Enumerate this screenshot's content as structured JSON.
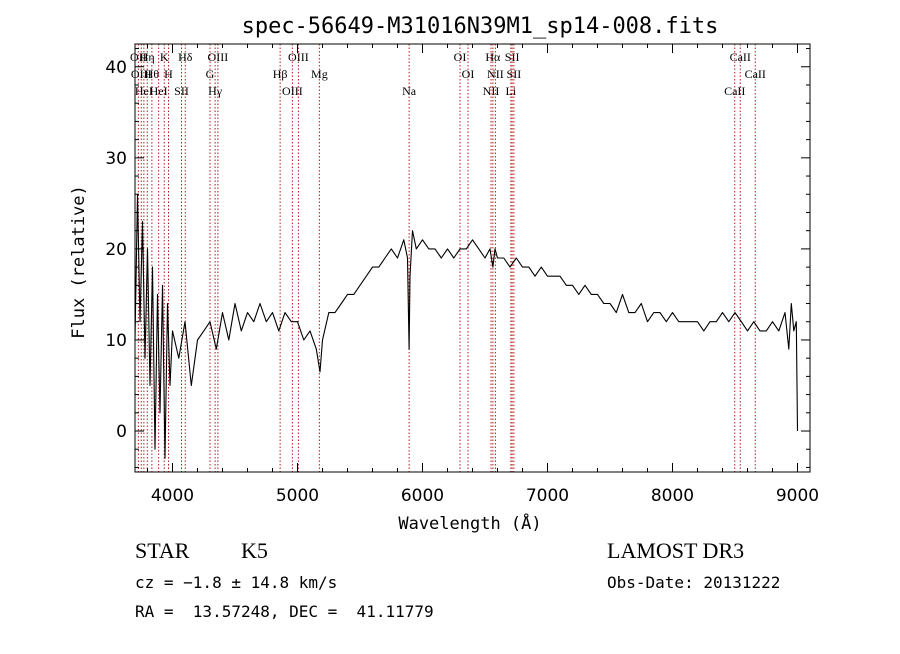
{
  "chart_data": {
    "type": "line",
    "title": "spec-56649-M31016N39M1_sp14-008.fits",
    "xlabel": "Wavelength (Å)",
    "ylabel": "Flux (relative)",
    "xlim": [
      3700,
      9100
    ],
    "ylim": [
      -4.5,
      42.5
    ],
    "x_ticks": [
      4000,
      5000,
      6000,
      7000,
      8000,
      9000
    ],
    "x_tick_labels": [
      "4000",
      "5000",
      "6000",
      "7000",
      "8000",
      "9000"
    ],
    "y_ticks": [
      0,
      10,
      20,
      30,
      40
    ],
    "y_tick_labels": [
      "0",
      "10",
      "20",
      "30",
      "40"
    ],
    "grid": false,
    "line_color": "#000000",
    "marker_line_color": "#b41e1e",
    "series": [
      {
        "x": [
          3700,
          3720,
          3740,
          3760,
          3780,
          3800,
          3820,
          3840,
          3860,
          3880,
          3900,
          3920,
          3940,
          3960,
          3980,
          4000,
          4050,
          4100,
          4150,
          4200,
          4250,
          4300,
          4350,
          4400,
          4450,
          4500,
          4550,
          4600,
          4650,
          4700,
          4750,
          4800,
          4850,
          4900,
          4950,
          5000,
          5050,
          5100,
          5150,
          5180,
          5200,
          5250,
          5300,
          5350,
          5400,
          5450,
          5500,
          5550,
          5600,
          5650,
          5700,
          5750,
          5800,
          5850,
          5880,
          5893,
          5900,
          5920,
          5950,
          6000,
          6050,
          6100,
          6150,
          6200,
          6250,
          6300,
          6350,
          6400,
          6450,
          6500,
          6540,
          6563,
          6580,
          6600,
          6650,
          6700,
          6750,
          6800,
          6850,
          6900,
          6950,
          7000,
          7050,
          7100,
          7150,
          7200,
          7250,
          7300,
          7350,
          7400,
          7450,
          7500,
          7550,
          7600,
          7650,
          7700,
          7750,
          7800,
          7850,
          7900,
          7950,
          8000,
          8050,
          8100,
          8150,
          8200,
          8250,
          8300,
          8350,
          8400,
          8450,
          8500,
          8550,
          8600,
          8650,
          8700,
          8750,
          8800,
          8850,
          8900,
          8930,
          8950,
          8970,
          8990,
          9000
        ],
        "y": [
          10,
          26,
          12,
          23,
          8,
          20,
          5,
          18,
          -2,
          15,
          2,
          16,
          -3,
          14,
          5,
          11,
          8,
          12,
          5,
          10,
          11,
          12,
          9,
          13,
          10,
          14,
          11,
          13,
          12,
          14,
          12,
          13,
          11,
          13,
          12,
          12,
          10,
          11,
          9,
          6.5,
          10,
          13,
          13,
          14,
          15,
          15,
          16,
          17,
          18,
          18,
          19,
          20,
          19,
          21,
          19,
          9,
          17,
          22,
          20,
          21,
          20,
          20,
          19,
          20,
          19,
          20,
          20,
          21,
          20,
          19,
          20,
          18,
          20,
          19,
          19,
          18,
          19,
          18,
          18,
          17,
          18,
          17,
          17,
          17,
          16,
          16,
          15,
          16,
          15,
          15,
          14,
          14,
          13,
          15,
          13,
          13,
          14,
          12,
          13,
          13,
          12,
          13,
          12,
          12,
          12,
          12,
          11,
          12,
          12,
          13,
          12,
          13,
          12,
          11,
          12,
          11,
          11,
          12,
          11,
          13,
          9,
          14,
          11,
          12,
          0
        ]
      }
    ],
    "line_markers": [
      {
        "x": 3727,
        "labels": [
          "OII"
        ]
      },
      {
        "x": 3750,
        "labels": [
          "OIII"
        ]
      },
      {
        "x": 3771,
        "labels": [
          "HeI"
        ]
      },
      {
        "x": 3798,
        "labels": [
          "Hη"
        ]
      },
      {
        "x": 3835,
        "labels": [
          "Hθ"
        ]
      },
      {
        "x": 3889,
        "labels": [
          "HeI"
        ]
      },
      {
        "x": 3934,
        "labels": [
          "K"
        ]
      },
      {
        "x": 3968,
        "labels": [
          "H"
        ]
      },
      {
        "x": 4072,
        "labels": [
          "SII"
        ]
      },
      {
        "x": 4102,
        "labels": [
          "Hδ"
        ]
      },
      {
        "x": 4300,
        "labels": [
          "G"
        ]
      },
      {
        "x": 4341,
        "labels": [
          "Hγ"
        ]
      },
      {
        "x": 4363,
        "labels": [
          "OIII"
        ]
      },
      {
        "x": 4861,
        "labels": [
          "Hβ"
        ]
      },
      {
        "x": 4959,
        "labels": [
          "OIII"
        ]
      },
      {
        "x": 5007,
        "labels": [
          "OIII"
        ]
      },
      {
        "x": 5175,
        "labels": [
          "Mg"
        ]
      },
      {
        "x": 5893,
        "labels": [
          "Na"
        ]
      },
      {
        "x": 6300,
        "labels": [
          "OI"
        ]
      },
      {
        "x": 6364,
        "labels": [
          "OI"
        ]
      },
      {
        "x": 6548,
        "labels": [
          "NII"
        ]
      },
      {
        "x": 6563,
        "labels": [
          "Hα"
        ]
      },
      {
        "x": 6583,
        "labels": [
          "NII"
        ]
      },
      {
        "x": 6707,
        "labels": [
          "Li"
        ]
      },
      {
        "x": 6717,
        "labels": [
          "SII"
        ]
      },
      {
        "x": 6731,
        "labels": [
          "SII"
        ]
      },
      {
        "x": 8498,
        "labels": [
          "CaII"
        ]
      },
      {
        "x": 8542,
        "labels": [
          "CaII"
        ]
      },
      {
        "x": 8662,
        "labels": [
          "CaII"
        ]
      }
    ]
  },
  "info": {
    "class": "STAR",
    "subclass": "K5",
    "survey": "LAMOST DR3",
    "cz": "cz = −1.8 ± 14.8 km/s",
    "obs_date": "Obs-Date: 20131222",
    "coords": "RA =  13.57248, DEC =  41.11779"
  }
}
